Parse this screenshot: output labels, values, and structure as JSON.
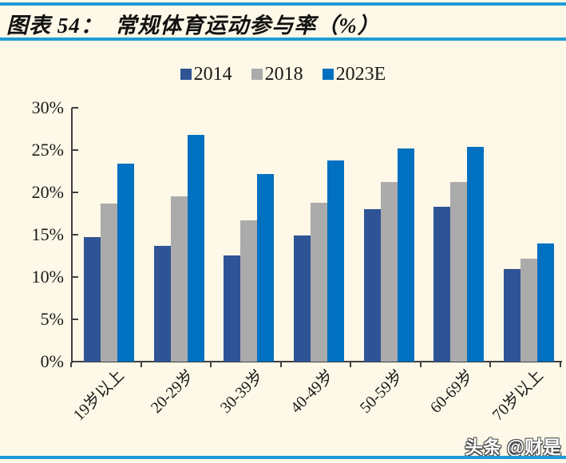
{
  "title": "图表 54：  常规体育运动参与率（%）",
  "colors": {
    "background": "#FDF8E7",
    "rule_blue": "#1E9BD6",
    "axis": "#404040",
    "title_text": "#111111"
  },
  "watermark": "头条 @财是",
  "legend": {
    "items": [
      "2014",
      "2018",
      "2023E"
    ]
  },
  "chart_data": {
    "type": "bar",
    "title": "常规体育运动参与率（%）",
    "categories": [
      "19岁以上",
      "20-29岁",
      "30-39岁",
      "40-49岁",
      "50-59岁",
      "60-69岁",
      "70岁以上"
    ],
    "series": [
      {
        "name": "2014",
        "color": "#2F5496",
        "values": [
          14.7,
          13.7,
          12.5,
          14.9,
          18.0,
          18.3,
          10.9
        ]
      },
      {
        "name": "2018",
        "color": "#ABABAB",
        "values": [
          18.7,
          19.5,
          16.7,
          18.8,
          21.2,
          21.2,
          12.2
        ]
      },
      {
        "name": "2023E",
        "color": "#0070C0",
        "values": [
          23.4,
          26.8,
          22.2,
          23.8,
          25.2,
          25.4,
          14.0
        ]
      }
    ],
    "ylim": [
      0,
      30
    ],
    "ytick_step": 5,
    "ytick_labels": [
      "0%",
      "5%",
      "10%",
      "15%",
      "20%",
      "25%",
      "30%"
    ],
    "grid": false,
    "legend_position": "top",
    "bar_unit": "percent"
  }
}
